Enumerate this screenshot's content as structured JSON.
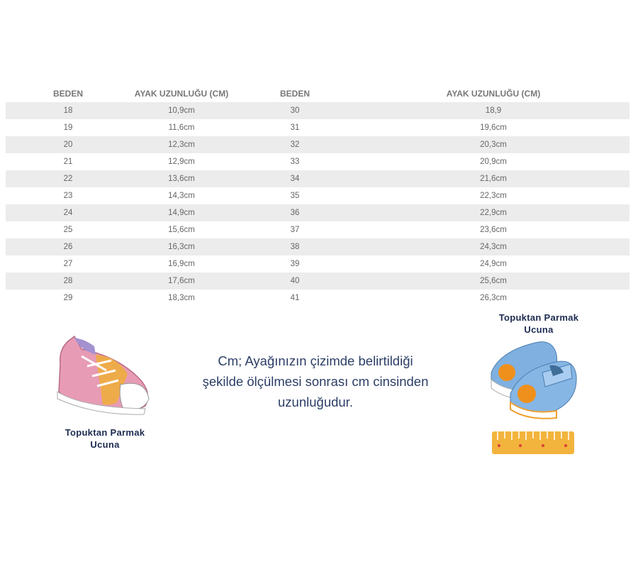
{
  "table": {
    "headers": [
      "BEDEN",
      "AYAK UZUNLUĞU (CM)",
      "BEDEN",
      "AYAK UZUNLUĞU (CM)"
    ],
    "rows": [
      [
        "18",
        "10,9cm",
        "30",
        "18,9"
      ],
      [
        "19",
        "11,6cm",
        "31",
        "19,6cm"
      ],
      [
        "20",
        "12,3cm",
        "32",
        "20,3cm"
      ],
      [
        "21",
        "12,9cm",
        "33",
        "20,9cm"
      ],
      [
        "22",
        "13,6cm",
        "34",
        "21,6cm"
      ],
      [
        "23",
        "14,3cm",
        "35",
        "22,3cm"
      ],
      [
        "24",
        "14,9cm",
        "36",
        "22,9cm"
      ],
      [
        "25",
        "15,6cm",
        "37",
        "23,6cm"
      ],
      [
        "26",
        "16,3cm",
        "38",
        "24,3cm"
      ],
      [
        "27",
        "16,9cm",
        "39",
        "24,9cm"
      ],
      [
        "28",
        "17,6cm",
        "40",
        "25,6cm"
      ],
      [
        "29",
        "18,3cm",
        "41",
        "26,3cm"
      ]
    ]
  },
  "left_caption": {
    "line1": "Topuktan Parmak",
    "line2": "Ucuna"
  },
  "right_caption": {
    "line1": "Topuktan Parmak",
    "line2": "Ucuna"
  },
  "description": {
    "line1": "Cm; Ayağınızın çizimde belirtildiği",
    "line2": "şekilde ölçülmesi sonrası cm cinsinden",
    "line3": "uzunluğudur."
  },
  "colors": {
    "caption": "#1d2b52",
    "row_alt": "#ececec",
    "pink_shoe": "#e79bb4",
    "blue_shoe": "#7fb0e0",
    "ruler": "#f2b43c"
  }
}
